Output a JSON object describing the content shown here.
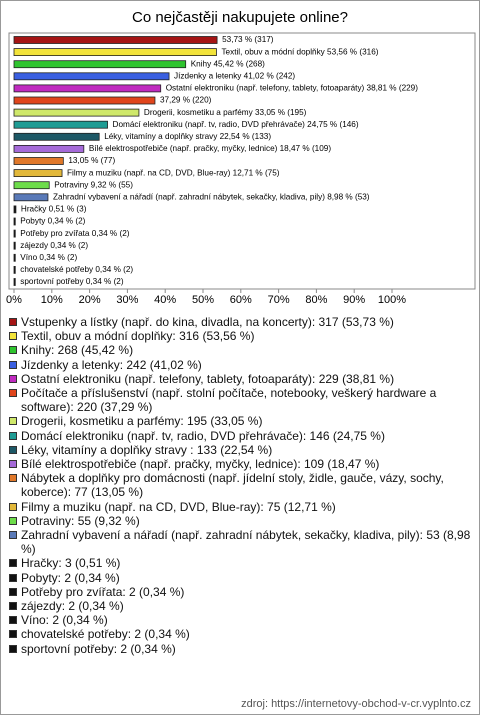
{
  "chart_data": {
    "type": "bar",
    "orientation": "horizontal",
    "title": "Co nejčastěji nakupujete online?",
    "categories": [
      "Vstupenky a lístky (např. do kina, divadla, na koncerty): 317 (53,73 %)",
      "Textil, obuv a módní doplňky: 316 (53,56 %)",
      "Knihy: 268 (45,42 %)",
      "Jízdenky a letenky: 242 (41,02 %)",
      "Ostatní elektroniku (např. telefony, tablety, fotoaparáty): 229 (38,81 %)",
      "Počítače a příslušenství (např. stolní počítače, notebooky, veškerý hardware a software): 220 (37,29 %)",
      "Drogerii, kosmetiku a parfémy: 195 (33,05 %)",
      "Domácí elektroniku (např. tv, radio, DVD přehrávače): 146 (24,75 %)",
      "Léky, vitamíny a doplňky stravy : 133 (22,54 %)",
      "Bílé elektrospotřebiče (např. pračky, myčky, lednice): 109 (18,47 %)",
      "Nábytek a doplňky pro domácnosti (např. jídelní stoly, židle, gauče, vázy, sochy, koberce): 77 (13,05 %)",
      "Filmy a muziku (např. na CD, DVD, Blue-ray): 75 (12,71 %)",
      "Potraviny: 55 (9,32 %)",
      "Zahradní vybavení a nářadí (např. zahradní nábytek, sekačky, kladiva, pily): 53 (8,98 %)",
      "Hračky: 3 (0,51 %)",
      "Pobyty: 2 (0,34 %)",
      "Potřeby pro zvířata: 2 (0,34 %)",
      "zájezdy: 2 (0,34 %)",
      "Víno: 2 (0,34 %)",
      "chovatelské potřeby: 2 (0,34 %)",
      "sportovní potřeby: 2 (0,34 %)"
    ],
    "values": [
      53.73,
      53.56,
      45.42,
      41.02,
      38.81,
      37.29,
      33.05,
      24.75,
      22.54,
      18.47,
      13.05,
      12.71,
      9.32,
      8.98,
      0.51,
      0.34,
      0.34,
      0.34,
      0.34,
      0.34,
      0.34
    ],
    "value_labels": [
      "53,73 % (317)",
      "Textil, obuv a módní doplňky 53,56 % (316)",
      "Knihy 45,42 % (268)",
      "Jízdenky a letenky 41,02 % (242)",
      "Ostatní elektroniku (např. telefony, tablety, fotoaparáty) 38,81 % (229)",
      "37,29 % (220)",
      "Drogerii, kosmetiku a parfémy 33,05 % (195)",
      "Domácí elektroniku (např. tv, radio, DVD přehrávače) 24,75 % (146)",
      "Léky, vitamíny a doplňky stravy  22,54 % (133)",
      "Bílé elektrospotřebiče (např. pračky, myčky, lednice) 18,47 % (109)",
      "13,05 % (77)",
      "Filmy a muziku (např. na CD, DVD, Blue-ray) 12,71 % (75)",
      "Potraviny 9,32 % (55)",
      "Zahradní vybavení a nářadí (např. zahradní nábytek, sekačky, kladiva, pily) 8,98 % (53)",
      "Hračky 0,51 % (3)",
      "Pobyty 0,34 % (2)",
      "Potřeby pro zvířata 0,34 % (2)",
      "zájezdy 0,34 % (2)",
      "Víno 0,34 % (2)",
      "chovatelské potřeby 0,34 % (2)",
      "sportovní potřeby 0,34 % (2)"
    ],
    "colors": [
      "#a51515",
      "#f2e33a",
      "#2fc42f",
      "#3a5fe0",
      "#c02bc0",
      "#e0451c",
      "#cfe86a",
      "#1f9c94",
      "#1d5866",
      "#a56ad8",
      "#e0782a",
      "#e2b83a",
      "#6ddc4a",
      "#5a7ab8",
      "#111111",
      "#111111",
      "#111111",
      "#111111",
      "#111111",
      "#111111",
      "#111111"
    ],
    "xlim": [
      0,
      100
    ],
    "xticks": [
      {
        "value": 0,
        "label": "0%"
      },
      {
        "value": 10,
        "label": "10%"
      },
      {
        "value": 20,
        "label": "20%"
      },
      {
        "value": 30,
        "label": "30%"
      },
      {
        "value": 40,
        "label": "40%"
      },
      {
        "value": 50,
        "label": "50%"
      },
      {
        "value": 60,
        "label": "60%"
      },
      {
        "value": 70,
        "label": "70%"
      },
      {
        "value": 80,
        "label": "80%"
      },
      {
        "value": 90,
        "label": "90%"
      },
      {
        "value": 100,
        "label": "100%"
      }
    ],
    "source": "zdroj: https://internetovy-obchod-v-cr.vyplnto.cz"
  }
}
